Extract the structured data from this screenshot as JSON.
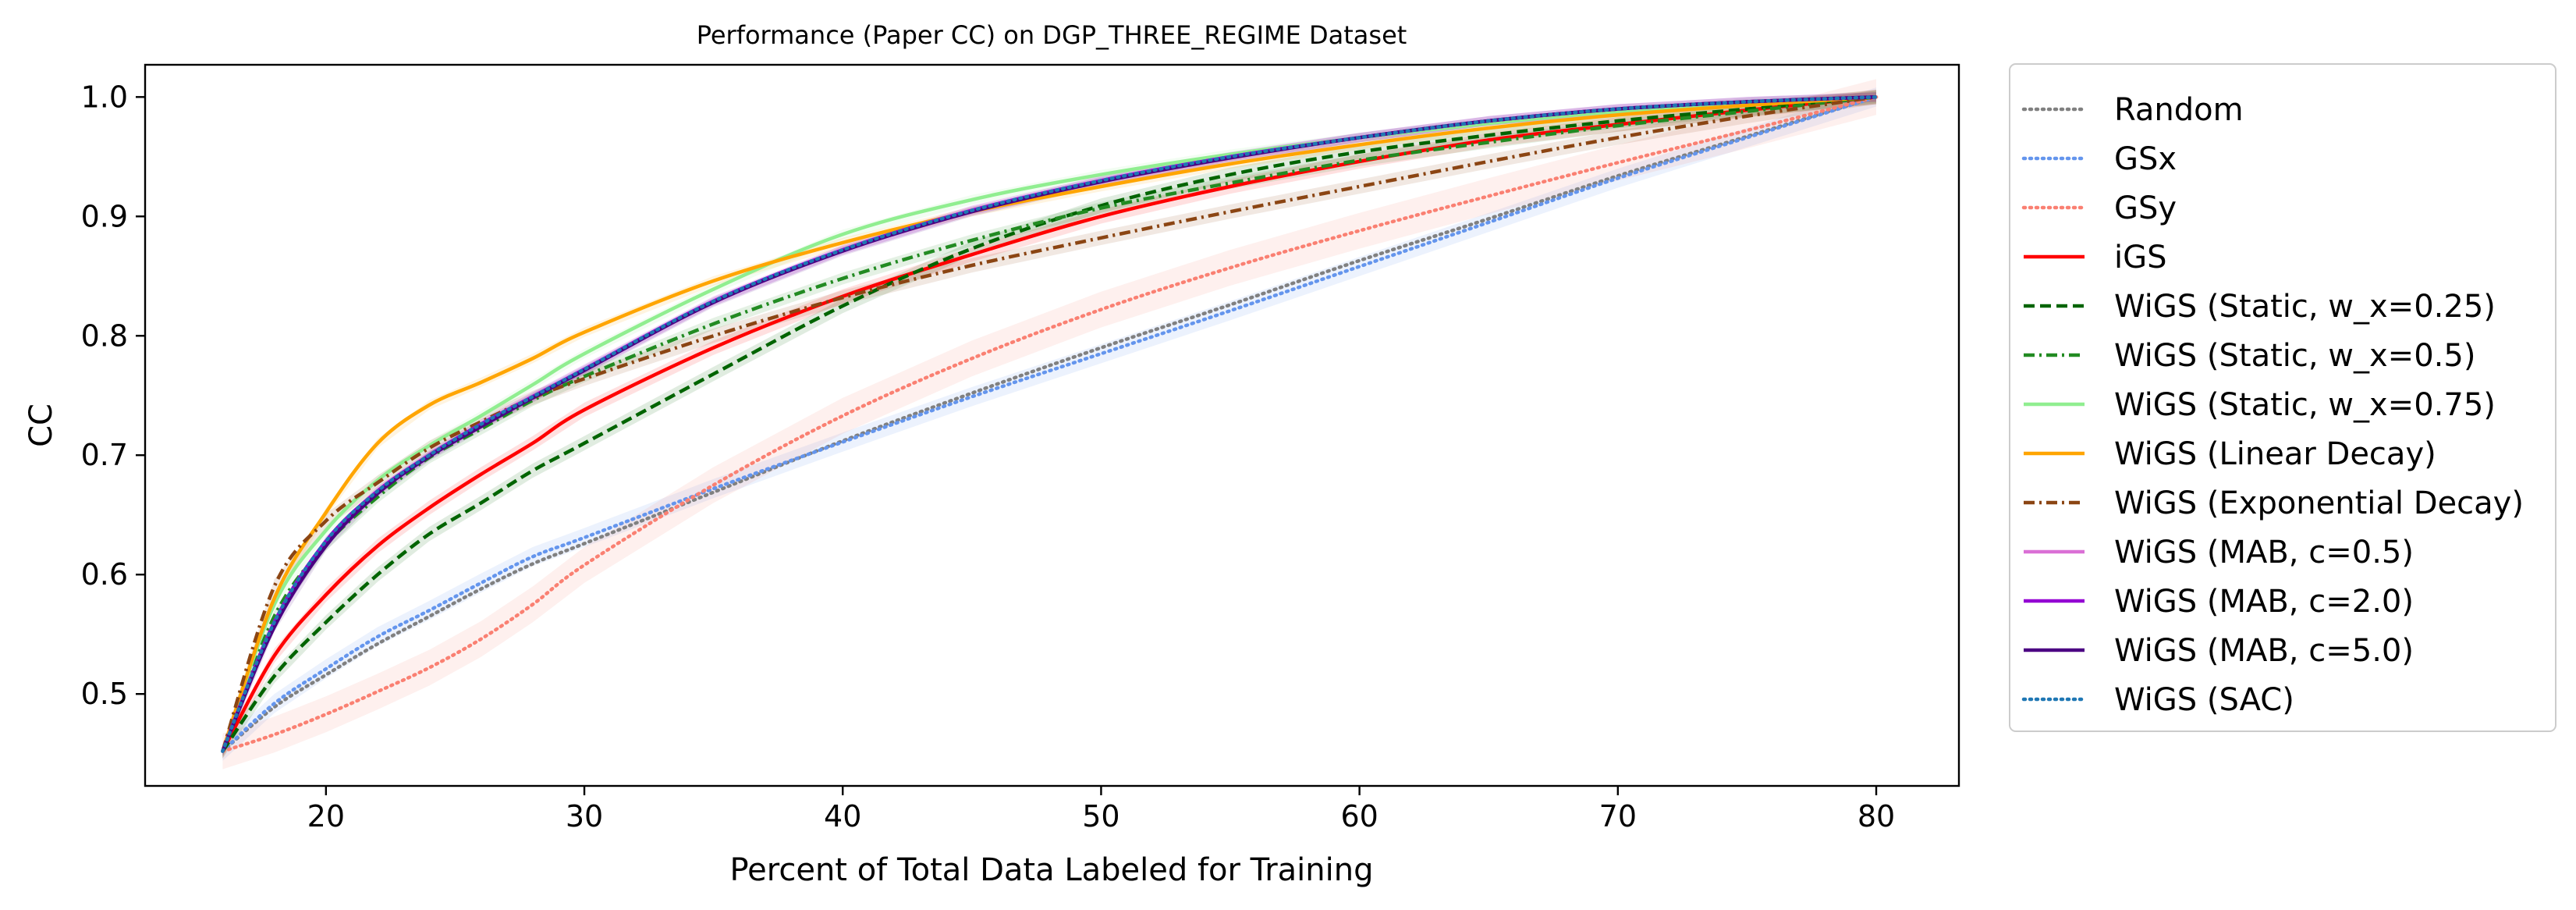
{
  "chart_data": {
    "type": "line",
    "title": "Performance (Paper CC) on DGP_THREE_REGIME Dataset",
    "xlabel": "Percent of Total Data Labeled for Training",
    "ylabel": "CC",
    "xlim": [
      13,
      83.2
    ],
    "ylim": [
      0.423,
      1.027
    ],
    "xticks": [
      20,
      30,
      40,
      50,
      60,
      70,
      80
    ],
    "yticks": [
      0.5,
      0.6,
      0.7,
      0.8,
      0.9,
      1.0
    ],
    "ytick_labels": [
      "0.5",
      "0.6",
      "0.7",
      "0.8",
      "0.9",
      "1.0"
    ],
    "grid": false,
    "legend_position": "outside-right",
    "x": [
      16,
      18,
      20,
      22,
      24,
      26,
      28,
      30,
      35,
      40,
      45,
      50,
      55,
      60,
      65,
      70,
      75,
      80
    ],
    "series": [
      {
        "name": "Random",
        "color": "#808080",
        "style": "dotted",
        "band": 0,
        "values": [
          0.452,
          0.489,
          0.516,
          0.542,
          0.565,
          0.588,
          0.609,
          0.626,
          0.669,
          0.712,
          0.752,
          0.79,
          0.826,
          0.863,
          0.898,
          0.934,
          0.967,
          1.0
        ]
      },
      {
        "name": "GSx",
        "color": "#6495ED",
        "style": "dotted",
        "band": 0.008,
        "values": [
          0.452,
          0.492,
          0.521,
          0.548,
          0.57,
          0.593,
          0.615,
          0.631,
          0.672,
          0.711,
          0.749,
          0.785,
          0.821,
          0.858,
          0.895,
          0.932,
          0.966,
          1.0
        ]
      },
      {
        "name": "GSy",
        "color": "#FA8072",
        "style": "dotted",
        "band": 0.015,
        "values": [
          0.452,
          0.466,
          0.483,
          0.502,
          0.522,
          0.546,
          0.575,
          0.608,
          0.675,
          0.733,
          0.781,
          0.822,
          0.857,
          0.888,
          0.917,
          0.945,
          0.972,
          1.0
        ]
      },
      {
        "name": "iGS",
        "color": "#FF0000",
        "style": "solid",
        "band": 0.006,
        "values": [
          0.452,
          0.532,
          0.583,
          0.624,
          0.656,
          0.684,
          0.71,
          0.738,
          0.79,
          0.833,
          0.868,
          0.9,
          0.925,
          0.946,
          0.964,
          0.977,
          0.989,
          1.0
        ]
      },
      {
        "name": "WiGS (Static, w_x=0.25)",
        "color": "#006400",
        "style": "dashed",
        "band": 0.006,
        "values": [
          0.452,
          0.515,
          0.56,
          0.6,
          0.634,
          0.66,
          0.687,
          0.71,
          0.768,
          0.825,
          0.873,
          0.909,
          0.935,
          0.954,
          0.968,
          0.98,
          0.99,
          1.0
        ]
      },
      {
        "name": "WiGS (Static, w_x=0.5)",
        "color": "#228B22",
        "style": "dashdot",
        "band": 0.005,
        "values": [
          0.452,
          0.565,
          0.625,
          0.665,
          0.698,
          0.722,
          0.746,
          0.766,
          0.81,
          0.848,
          0.88,
          0.907,
          0.928,
          0.947,
          0.962,
          0.976,
          0.988,
          1.0
        ]
      },
      {
        "name": "WiGS (Static, w_x=0.75)",
        "color": "#90EE90",
        "style": "solid",
        "band": 0.004,
        "values": [
          0.452,
          0.575,
          0.637,
          0.679,
          0.708,
          0.733,
          0.759,
          0.785,
          0.839,
          0.885,
          0.914,
          0.935,
          0.952,
          0.966,
          0.978,
          0.988,
          0.995,
          1.0
        ]
      },
      {
        "name": "WiGS (Linear Decay)",
        "color": "#FFA500",
        "style": "solid",
        "band": 0.004,
        "values": [
          0.452,
          0.58,
          0.652,
          0.71,
          0.742,
          0.761,
          0.781,
          0.803,
          0.846,
          0.878,
          0.904,
          0.925,
          0.944,
          0.96,
          0.974,
          0.985,
          0.993,
          1.0
        ]
      },
      {
        "name": "WiGS (Exponential Decay)",
        "color": "#8B4513",
        "style": "dashdot",
        "band": 0.006,
        "values": [
          0.452,
          0.59,
          0.645,
          0.677,
          0.706,
          0.728,
          0.748,
          0.764,
          0.8,
          0.832,
          0.859,
          0.882,
          0.904,
          0.925,
          0.946,
          0.966,
          0.984,
          1.0
        ]
      },
      {
        "name": "WiGS (MAB, c=0.5)",
        "color": "#DA70D6",
        "style": "solid",
        "band": 0.004,
        "values": [
          0.452,
          0.56,
          0.628,
          0.67,
          0.7,
          0.726,
          0.749,
          0.772,
          0.829,
          0.872,
          0.905,
          0.93,
          0.95,
          0.966,
          0.98,
          0.99,
          0.996,
          1.0
        ]
      },
      {
        "name": "WiGS (MAB, c=2.0)",
        "color": "#9400D3",
        "style": "solid",
        "band": 0.004,
        "values": [
          0.452,
          0.56,
          0.628,
          0.67,
          0.7,
          0.726,
          0.749,
          0.772,
          0.829,
          0.872,
          0.905,
          0.93,
          0.95,
          0.966,
          0.98,
          0.99,
          0.996,
          1.0
        ]
      },
      {
        "name": "WiGS (MAB, c=5.0)",
        "color": "#4B0082",
        "style": "solid",
        "band": 0.004,
        "values": [
          0.452,
          0.556,
          0.624,
          0.668,
          0.699,
          0.724,
          0.748,
          0.771,
          0.828,
          0.871,
          0.904,
          0.929,
          0.949,
          0.966,
          0.98,
          0.99,
          0.996,
          1.0
        ]
      },
      {
        "name": "WiGS (SAC)",
        "color": "#1F77B4",
        "style": "dotted",
        "band": 0,
        "values": [
          0.452,
          0.56,
          0.628,
          0.67,
          0.7,
          0.726,
          0.749,
          0.772,
          0.829,
          0.872,
          0.905,
          0.93,
          0.95,
          0.966,
          0.98,
          0.99,
          0.996,
          1.0
        ]
      }
    ]
  }
}
